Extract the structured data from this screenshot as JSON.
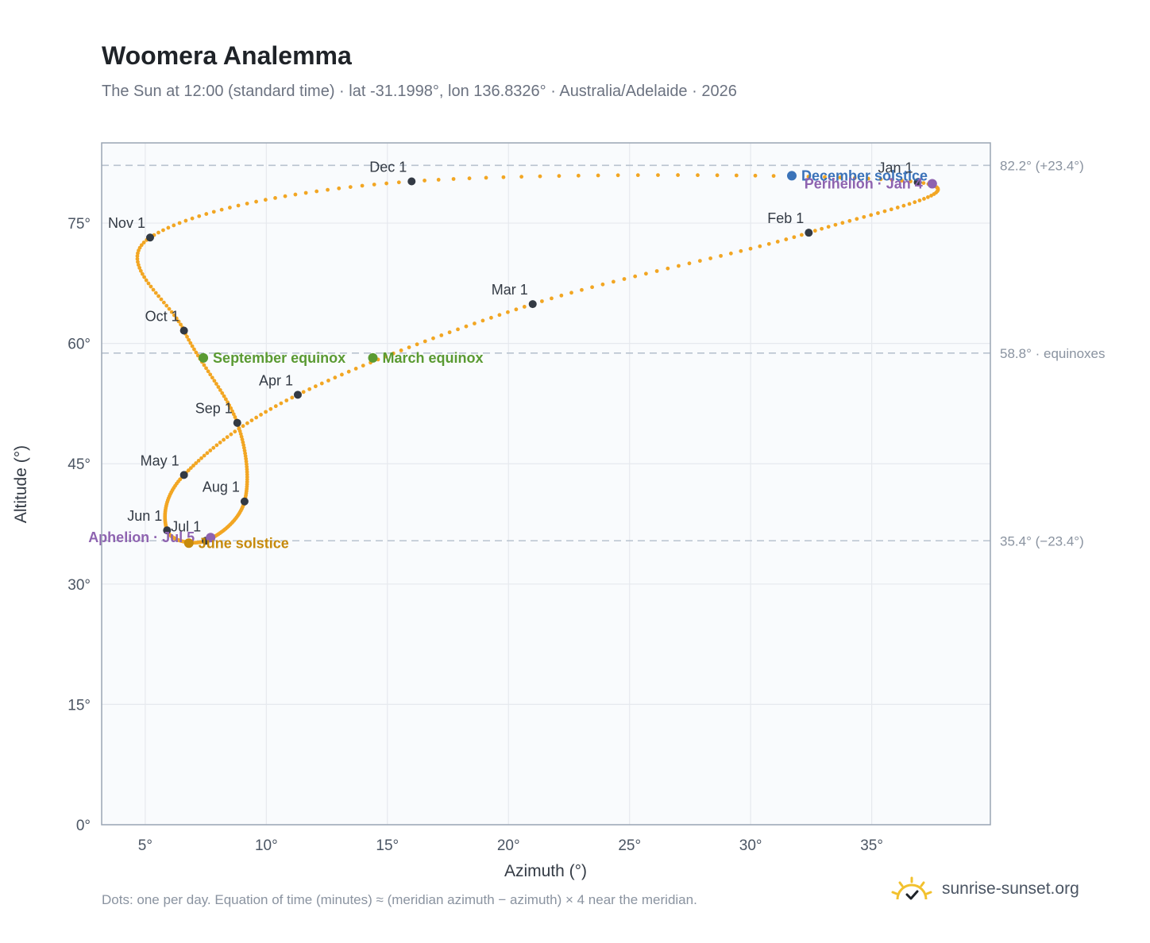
{
  "header": {
    "title": "Woomera Analemma",
    "subtitle": "The Sun at 12:00 (standard time) · lat -31.1998°, lon 136.8326° · Australia/Adelaide · 2026"
  },
  "footer": {
    "note": "Dots: one per day. Equation of time (minutes) ≈ (meridian azimuth − azimuth) × 4 near the meridian.",
    "brand": "sunrise-sunset.org"
  },
  "chart_data": {
    "type": "scatter",
    "xlabel": "Azimuth (°)",
    "ylabel": "Altitude (°)",
    "xlim": [
      3.2,
      39.9
    ],
    "ylim": [
      0,
      85
    ],
    "x_ticks": [
      5,
      10,
      15,
      20,
      25,
      30,
      35
    ],
    "x_tick_labels": [
      "5°",
      "10°",
      "15°",
      "20°",
      "25°",
      "30°",
      "35°"
    ],
    "y_ticks": [
      0,
      15,
      30,
      45,
      60,
      75
    ],
    "y_tick_labels": [
      "0°",
      "15°",
      "30°",
      "45°",
      "60°",
      "75°"
    ],
    "grid": true,
    "reference_lines": [
      {
        "y": 82.2,
        "label": "82.2° (+23.4°)"
      },
      {
        "y": 58.8,
        "label": "58.8° · equinoxes"
      },
      {
        "y": 35.4,
        "label": "35.4° (−23.4°)"
      }
    ],
    "month_points": [
      {
        "label": "Jan 1",
        "x": 36.9,
        "y": 80.1
      },
      {
        "label": "Feb 1",
        "x": 32.4,
        "y": 73.8
      },
      {
        "label": "Mar 1",
        "x": 21.0,
        "y": 64.9
      },
      {
        "label": "Apr 1",
        "x": 11.3,
        "y": 53.6
      },
      {
        "label": "May 1",
        "x": 6.6,
        "y": 43.6
      },
      {
        "label": "Jun 1",
        "x": 5.9,
        "y": 36.7
      },
      {
        "label": "Jul 1",
        "x": 7.5,
        "y": 35.4
      },
      {
        "label": "Aug 1",
        "x": 9.1,
        "y": 40.3
      },
      {
        "label": "Sep 1",
        "x": 8.8,
        "y": 50.1
      },
      {
        "label": "Oct 1",
        "x": 6.6,
        "y": 61.6
      },
      {
        "label": "Nov 1",
        "x": 5.2,
        "y": 73.2
      },
      {
        "label": "Dec 1",
        "x": 16.0,
        "y": 80.2
      }
    ],
    "events": [
      {
        "label": "December solstice",
        "x": 31.7,
        "y": 80.9,
        "color": "#3b73b9"
      },
      {
        "label": "Perihelion · Jan 4",
        "x": 37.5,
        "y": 79.9,
        "color": "#8e63b0"
      },
      {
        "label": "September equinox",
        "x": 7.4,
        "y": 58.2,
        "color": "#5a9a32"
      },
      {
        "label": "March equinox",
        "x": 14.4,
        "y": 58.2,
        "color": "#5a9a32"
      },
      {
        "label": "Aphelion · Jul 5",
        "x": 7.7,
        "y": 35.8,
        "color": "#8e63b0"
      },
      {
        "label": "June solstice",
        "x": 6.8,
        "y": 35.1,
        "color": "#c68a0c"
      }
    ],
    "colors": {
      "analemma": "#f2a623",
      "month_point": "#333a44",
      "grid": "#e6e9ee",
      "reference_line": "#b9c3cf",
      "plot_background": "#f9fbfd",
      "frame": "#9aa5b4"
    }
  }
}
